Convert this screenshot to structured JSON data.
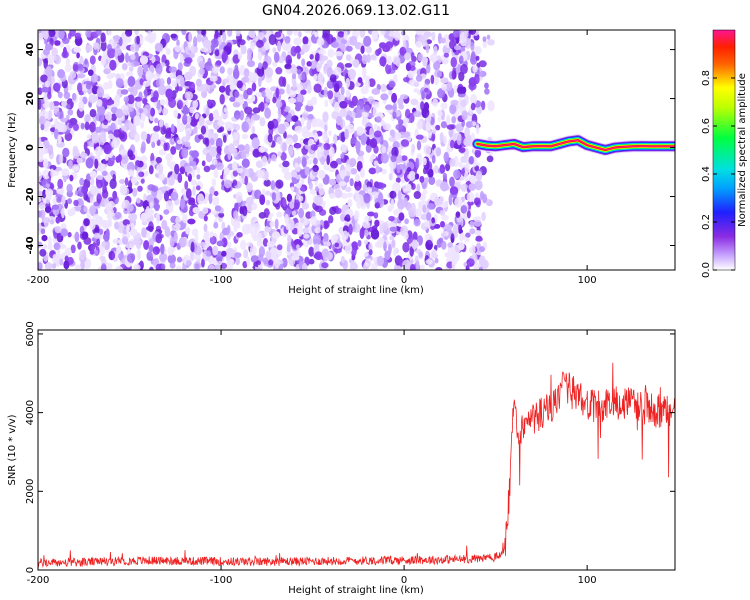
{
  "title": "GN04.2026.069.13.02.G11",
  "chart_data": [
    {
      "type": "heatmap",
      "title": "GN04.2026.069.13.02.G11",
      "xlabel": "Height of straight line (km)",
      "ylabel": "Frequency (Hz)",
      "xlim": [
        -200,
        148
      ],
      "ylim": [
        -50,
        48
      ],
      "xticks": [
        "-200",
        "-100",
        "0",
        "100"
      ],
      "yticks": [
        "40",
        "20",
        "0",
        "-20",
        "-40"
      ],
      "colorbar": {
        "label": "Normalized spectral amplitude",
        "range": [
          0,
          1
        ],
        "ticks": [
          "0.0",
          "0.2",
          "0.4",
          "0.6",
          "0.8"
        ],
        "colors": [
          "#ffffff",
          "#8a2be2",
          "#2020ff",
          "#00e0ff",
          "#00ff40",
          "#ffff00",
          "#ff2000",
          "#ff1493"
        ]
      },
      "regions": [
        {
          "name": "noise",
          "x_range": [
            -200,
            48
          ],
          "y_range": [
            -50,
            48
          ],
          "amplitude_range": [
            0.0,
            0.2
          ]
        },
        {
          "name": "carrier",
          "x_range": [
            40,
            148
          ],
          "y_center": 0.5,
          "y_width": 4,
          "peak_amplitude": 0.95
        }
      ],
      "carrier_track": {
        "x": [
          40,
          45,
          50,
          55,
          60,
          65,
          70,
          75,
          80,
          85,
          90,
          95,
          100,
          105,
          110,
          115,
          120,
          125,
          130,
          135,
          140,
          148
        ],
        "y": [
          1.5,
          0.8,
          0.5,
          1.0,
          1.5,
          0.2,
          0.5,
          0.6,
          0.5,
          1.5,
          2.5,
          3.0,
          1.0,
          0.0,
          -1.0,
          0.0,
          0.3,
          0.5,
          0.6,
          0.5,
          0.5,
          0.5
        ]
      }
    },
    {
      "type": "line",
      "xlabel": "Height of straight line (km)",
      "ylabel": "SNR (10 * v/v)",
      "xlim": [
        -200,
        148
      ],
      "ylim": [
        0,
        6100
      ],
      "xticks": [
        "-200",
        "-100",
        "0",
        "100"
      ],
      "yticks": [
        "0",
        "2000",
        "4000",
        "6000"
      ],
      "color": "#ee2222",
      "x": [
        -200,
        -180,
        -160,
        -140,
        -120,
        -100,
        -80,
        -60,
        -40,
        -20,
        0,
        20,
        40,
        50,
        55,
        58,
        60,
        63,
        66,
        70,
        75,
        80,
        85,
        88,
        90,
        95,
        100,
        105,
        110,
        115,
        120,
        125,
        130,
        135,
        140,
        145,
        148
      ],
      "values": [
        180,
        190,
        220,
        240,
        230,
        220,
        210,
        220,
        230,
        240,
        250,
        260,
        290,
        320,
        500,
        2200,
        4300,
        3400,
        3700,
        3800,
        4000,
        4100,
        4300,
        4800,
        4600,
        4400,
        4200,
        4100,
        4200,
        4300,
        4250,
        4200,
        4150,
        4100,
        4000,
        4000,
        4100
      ]
    }
  ]
}
